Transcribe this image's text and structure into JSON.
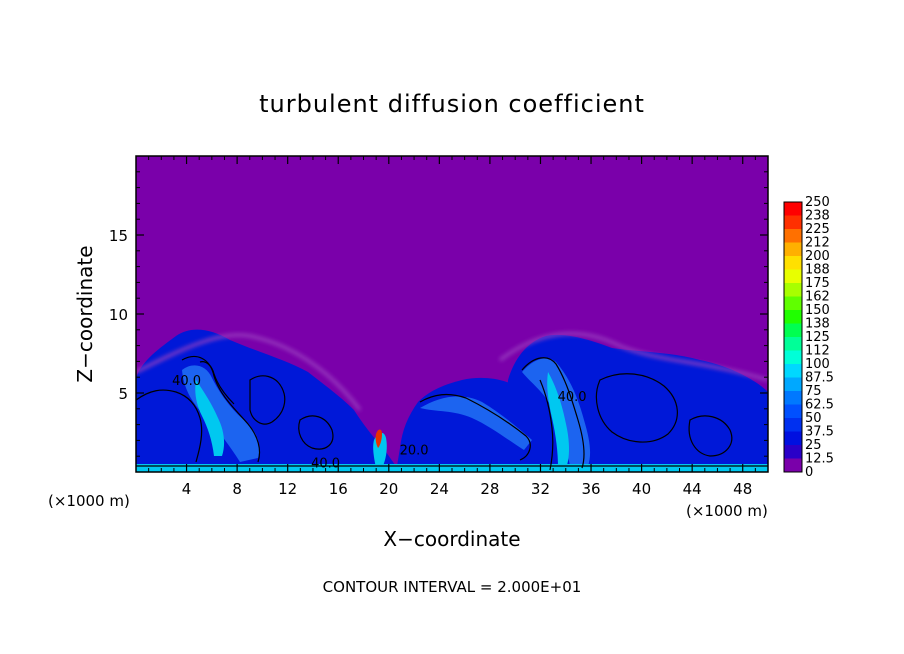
{
  "chart_data": {
    "type": "heatmap",
    "title": "turbulent diffusion coefficient",
    "xlabel": "X−coordinate",
    "ylabel": "Z−coordinate",
    "x_unit_left": "(×1000 m)",
    "x_unit_right": "(×1000 m)",
    "xlim": [
      0,
      50
    ],
    "ylim": [
      0,
      20
    ],
    "x_ticks": [
      4,
      8,
      12,
      16,
      20,
      24,
      28,
      32,
      36,
      40,
      44,
      48
    ],
    "y_ticks": [
      5,
      10,
      15
    ],
    "background_color": "#7a00aa",
    "colorbar": {
      "levels": [
        "0",
        "12.5",
        "25",
        "37.5",
        "50",
        "62.5",
        "75",
        "87.5",
        "100",
        "112",
        "125",
        "138",
        "150",
        "162",
        "175",
        "188",
        "200",
        "212",
        "225",
        "238",
        "250"
      ],
      "colors": [
        "#7a00aa",
        "#2a00c8",
        "#0010e0",
        "#0030f0",
        "#0050ff",
        "#0078ff",
        "#00a8ff",
        "#00d8ff",
        "#00ffd8",
        "#00ff98",
        "#00ff50",
        "#20ff00",
        "#60ff00",
        "#a8ff00",
        "#e8ff00",
        "#ffe000",
        "#ffb000",
        "#ff7000",
        "#ff3000",
        "#ff0000",
        "#ff8080"
      ]
    },
    "contour_labels": [
      {
        "text": "40.0",
        "x": 4.0,
        "y": 5.5
      },
      {
        "text": "40.0",
        "x": 15.0,
        "y": 0.3
      },
      {
        "text": "20.0",
        "x": 22.0,
        "y": 1.1
      },
      {
        "text": "40.0",
        "x": 34.5,
        "y": 4.5
      }
    ],
    "footnote": "CONTOUR INTERVAL = 2.000E+01"
  }
}
